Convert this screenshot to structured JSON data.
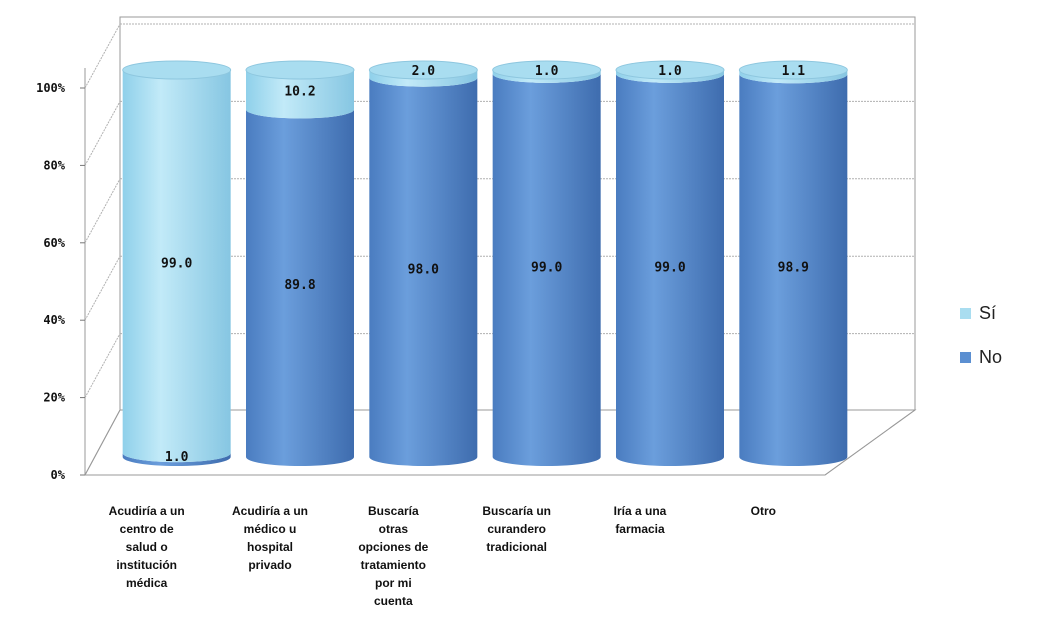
{
  "chart_data": {
    "type": "bar",
    "stacked": "percent",
    "style": "3d-cylinder",
    "categories": [
      "Acudiría a un centro de salud o institución médica",
      "Acudiría a un médico u hospital privado",
      "Buscaría otras opciones de tratamiento por mi cuenta",
      "Buscaría un curandero tradicional",
      "Iría a una farmacia",
      "Otro"
    ],
    "category_lines": [
      [
        "Acudiría a un",
        "centro de",
        "salud o",
        "institución",
        "médica"
      ],
      [
        "Acudiría a un",
        "médico u",
        "hospital",
        "privado"
      ],
      [
        "Buscaría",
        "otras",
        "opciones de",
        "tratamiento",
        "por mi",
        "cuenta"
      ],
      [
        "Buscaría un",
        "curandero",
        "tradicional"
      ],
      [
        "Iría a una",
        "farmacia"
      ],
      [
        "Otro"
      ]
    ],
    "series": [
      {
        "name": "No",
        "values": [
          1.0,
          89.8,
          98.0,
          99.0,
          99.0,
          98.9
        ],
        "labels": [
          "1.0",
          "89.8",
          "98.0",
          "99.0",
          "99.0",
          "98.9"
        ],
        "color": "#5B8FD1"
      },
      {
        "name": "Sí",
        "values": [
          99.0,
          10.2,
          2.0,
          1.0,
          1.0,
          1.1
        ],
        "labels": [
          "99.0",
          "10.2",
          "2.0",
          "1.0",
          "1.0",
          "1.1"
        ],
        "color": "#A9DDF0"
      }
    ],
    "yticks": [
      "0%",
      "20%",
      "40%",
      "60%",
      "80%",
      "100%"
    ],
    "ylim": [
      0,
      100
    ],
    "grid": true,
    "legend": "right",
    "legend_order": [
      "Sí",
      "No"
    ]
  }
}
